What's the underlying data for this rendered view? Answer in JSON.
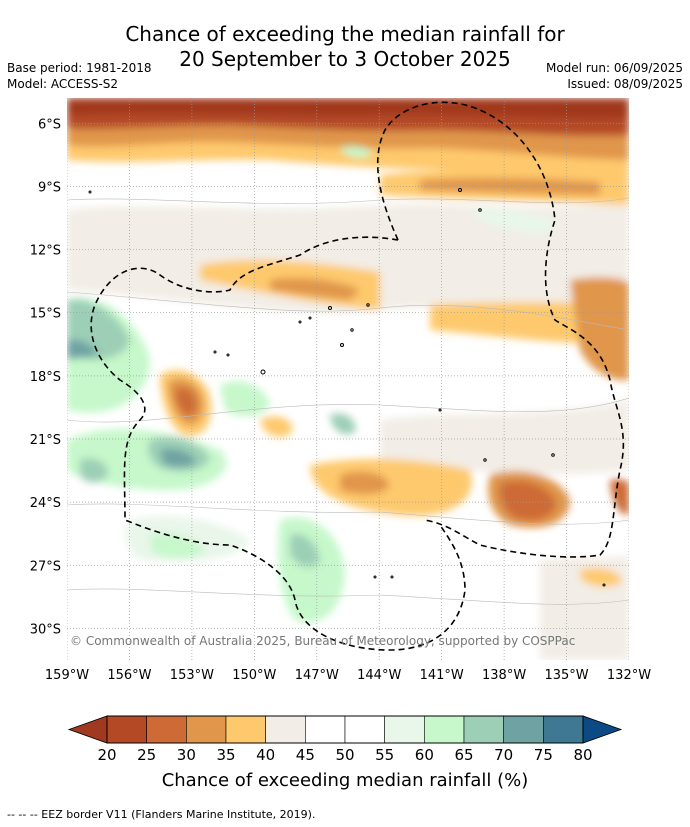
{
  "header": {
    "title_line1": "Chance of exceeding the median rainfall for",
    "title_line2": "20 September to 3 October 2025",
    "base_period": "Base period: 1981-2018",
    "model": "Model: ACCESS-S2",
    "model_run": "Model run: 06/09/2025",
    "issued": "Issued: 08/09/2025"
  },
  "map": {
    "lat_labels": [
      "6°S",
      "9°S",
      "12°S",
      "15°S",
      "18°S",
      "21°S",
      "24°S",
      "27°S",
      "30°S"
    ],
    "lon_labels": [
      "159°W",
      "156°W",
      "153°W",
      "150°W",
      "147°W",
      "144°W",
      "141°W",
      "138°W",
      "135°W",
      "132°W"
    ],
    "lat_range": [
      -31.5,
      -4.8
    ],
    "lon_range": [
      -159,
      -132
    ],
    "copyright": "© Commonwealth of Australia 2025, Bureau of Meteorology, supported by COSPPac",
    "grid": true
  },
  "colorbar": {
    "ticks": [
      "20",
      "25",
      "30",
      "35",
      "40",
      "45",
      "50",
      "55",
      "60",
      "65",
      "70",
      "75",
      "80"
    ],
    "colors": [
      "#a0391f",
      "#b44a25",
      "#cd6a36",
      "#e0964b",
      "#fec96d",
      "#f2ede6",
      "#ffffff",
      "#ffffff",
      "#e9f6ea",
      "#c6f8cb",
      "#9ccfb6",
      "#6fa3a3",
      "#3f7893",
      "#0c4a85"
    ],
    "label": "Chance of exceeding median rainfall (%)"
  },
  "footnote": "--  --  -- EEZ border V11 (Flanders Marine Institute, 2019)."
}
